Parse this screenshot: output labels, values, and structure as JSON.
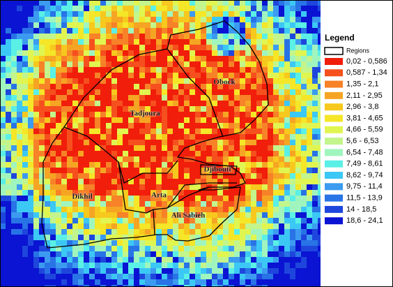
{
  "map": {
    "legend": {
      "title": "Legend",
      "regions_label": "Regions",
      "classes": [
        {
          "label": "0,02 - 0,586",
          "color": "#f01e0a"
        },
        {
          "label": "0,587 - 1,34",
          "color": "#f5501e"
        },
        {
          "label": "1,35 - 2,1",
          "color": "#f78228"
        },
        {
          "label": "2,11 - 2,95",
          "color": "#f5a523"
        },
        {
          "label": "2,96 - 3,8",
          "color": "#f7c81e"
        },
        {
          "label": "3,81 - 4,65",
          "color": "#f5e628"
        },
        {
          "label": "4,66 - 5,59",
          "color": "#e1f550"
        },
        {
          "label": "5,6 - 6,53",
          "color": "#c3f58c"
        },
        {
          "label": "6,54 - 7,48",
          "color": "#a0f5be"
        },
        {
          "label": "7,49 - 8,61",
          "color": "#5af0e6"
        },
        {
          "label": "8,62 - 9,74",
          "color": "#3cc8f5"
        },
        {
          "label": "9,75 - 11,4",
          "color": "#3c9bf0"
        },
        {
          "label": "11,5 - 13,9",
          "color": "#2873e6"
        },
        {
          "label": "14 - 18,5",
          "color": "#1e46dc"
        },
        {
          "label": "18,6 - 24,1",
          "color": "#0a14d2"
        }
      ]
    },
    "regions": [
      {
        "label": "Obock"
      },
      {
        "label": "Tadjoura"
      },
      {
        "label": "Djibouti"
      },
      {
        "label": "Arta"
      },
      {
        "label": "Dikhil"
      },
      {
        "label": "Ali Sabieh"
      }
    ]
  }
}
